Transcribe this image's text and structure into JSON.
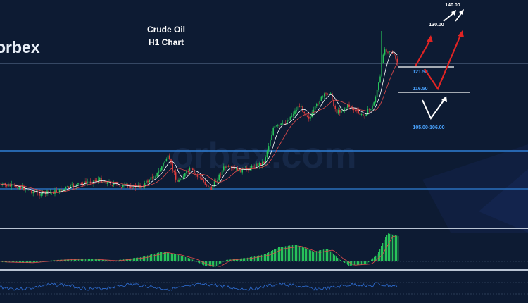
{
  "brand": {
    "logo_text": "orbex",
    "watermark": "orbex.com"
  },
  "chart_title": {
    "line1": "Crude Oil",
    "line2": "H1 Chart"
  },
  "levels": {
    "label_140": "140.00",
    "label_130": "130.00",
    "label_121": "121.50",
    "label_116": "116.50",
    "label_105": "105.00-106.00"
  },
  "colors": {
    "background": "#0d1b33",
    "bull": "#27c25a",
    "bear": "#e03b3b",
    "resistance_line": "#2f7fd6",
    "support_line": "#8fa6c4",
    "arrow_red": "#e02424",
    "arrow_white": "#ffffff",
    "level_label": "#4aa3ff"
  },
  "chart_data": [
    {
      "type": "candlestick",
      "title": "",
      "price_levels": [
        140.0,
        130.0,
        121.5,
        116.5,
        105.0,
        106.0
      ],
      "projected_path": [
        {
          "scenario": "bullish",
          "via": [
            121.5,
            130.0,
            140.0
          ]
        },
        {
          "scenario": "pullback",
          "via": [
            116.5,
            105.0,
            140.0
          ]
        }
      ]
    },
    {
      "type": "bar",
      "title": "",
      "description_of_series": ""
    },
    {
      "type": "line",
      "title": ""
    }
  ]
}
